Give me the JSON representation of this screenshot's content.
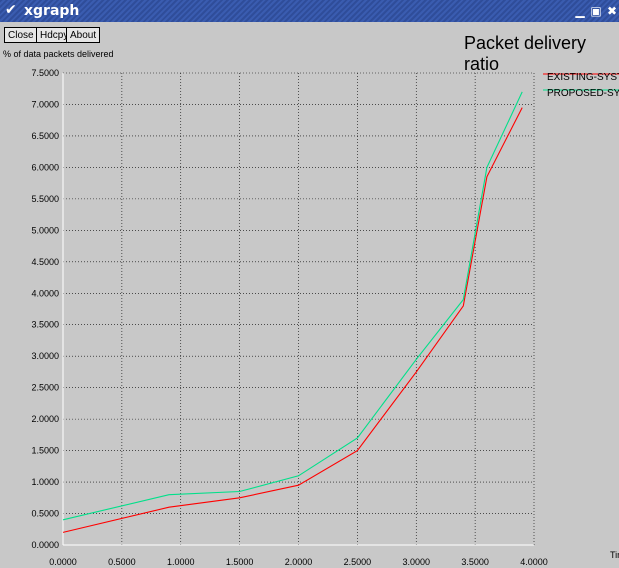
{
  "window": {
    "title": "xgraph",
    "menu_icon": "chevron-down-icon",
    "controls": [
      "minimize-icon",
      "maximize-icon",
      "close-icon"
    ]
  },
  "toolbar": {
    "close_label": "Close",
    "hdcpy_label": "Hdcpy",
    "about_label": "About"
  },
  "colors": {
    "background": "#c8c8c8",
    "titlebar": "#3a5cb0",
    "grid": "#000000",
    "existing": "#ff0000",
    "proposed": "#00e08a"
  },
  "chart_data": {
    "type": "line",
    "title": "Packet delivery ratio",
    "ylabel": "% of data packets delivered",
    "xlabel": "Time",
    "xlim": [
      0,
      4.0
    ],
    "ylim": [
      0,
      7.5
    ],
    "grid": true,
    "legend_position": "top-right",
    "x_ticks": [
      "0.0000",
      "0.5000",
      "1.0000",
      "1.5000",
      "2.0000",
      "2.5000",
      "3.0000",
      "3.5000",
      "4.0000"
    ],
    "y_ticks": [
      "0.0000",
      "0.5000",
      "1.0000",
      "1.5000",
      "2.0000",
      "2.5000",
      "3.0000",
      "3.5000",
      "4.0000",
      "4.5000",
      "5.0000",
      "5.5000",
      "6.0000",
      "6.5000",
      "7.0000",
      "7.5000"
    ],
    "series": [
      {
        "name": "EXISTING-SYSTEM",
        "color": "#ff0000",
        "x": [
          0.0,
          0.9,
          1.5,
          2.0,
          2.5,
          3.0,
          3.4,
          3.6,
          3.9
        ],
        "y": [
          0.2,
          0.6,
          0.75,
          0.95,
          1.5,
          2.75,
          3.8,
          5.85,
          6.95
        ]
      },
      {
        "name": "PROPOSED-SYSTEM",
        "color": "#00e08a",
        "x": [
          0.0,
          0.9,
          1.5,
          2.0,
          2.5,
          3.0,
          3.4,
          3.6,
          3.9
        ],
        "y": [
          0.4,
          0.8,
          0.85,
          1.1,
          1.7,
          2.95,
          3.9,
          6.0,
          7.2
        ]
      }
    ]
  }
}
